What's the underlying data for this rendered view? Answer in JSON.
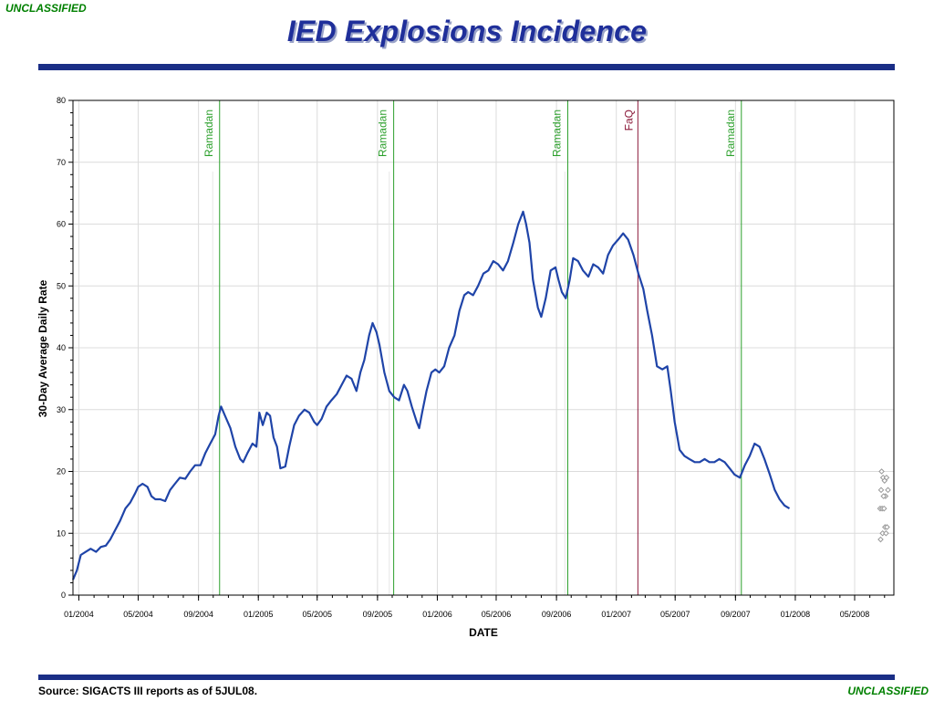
{
  "header": {
    "classification_top": "UNCLASSIFIED",
    "title": "IED Explosions Incidence"
  },
  "footer": {
    "source": "Source:  SIGACTS III reports as of 5JUL08.",
    "classification_bottom": "UNCLASSIFIED"
  },
  "colors": {
    "series": "#1f44a8",
    "ramadan": "#2ca02c",
    "faq": "#8b1a3a",
    "rule": "#1a2e86",
    "classification": "#008000"
  },
  "chart_data": {
    "type": "line",
    "title": "IED Explosions Incidence",
    "xlabel": "DATE",
    "ylabel": "30-Day Average Daily Rate",
    "ylim": [
      0,
      80
    ],
    "xlim": [
      "2003-12-20",
      "2008-07-20"
    ],
    "grid": true,
    "y_ticks": [
      0,
      10,
      20,
      30,
      40,
      50,
      60,
      70,
      80
    ],
    "x_ticks": [
      {
        "date": "2004-01-01",
        "label": "01/2004"
      },
      {
        "date": "2004-05-01",
        "label": "05/2004"
      },
      {
        "date": "2004-09-01",
        "label": "09/2004"
      },
      {
        "date": "2005-01-01",
        "label": "01/2005"
      },
      {
        "date": "2005-05-01",
        "label": "05/2005"
      },
      {
        "date": "2005-09-01",
        "label": "09/2005"
      },
      {
        "date": "2006-01-01",
        "label": "01/2006"
      },
      {
        "date": "2006-05-01",
        "label": "05/2006"
      },
      {
        "date": "2006-09-01",
        "label": "09/2006"
      },
      {
        "date": "2007-01-01",
        "label": "01/2007"
      },
      {
        "date": "2007-05-01",
        "label": "05/2007"
      },
      {
        "date": "2007-09-01",
        "label": "09/2007"
      },
      {
        "date": "2008-01-01",
        "label": "01/2008"
      },
      {
        "date": "2008-05-01",
        "label": "05/2008"
      }
    ],
    "events": [
      {
        "label": "Ramadan",
        "start": "2004-09-30",
        "end": "2004-10-14",
        "kind": "ramadan"
      },
      {
        "label": "Ramadan",
        "start": "2005-09-25",
        "end": "2005-10-04",
        "kind": "ramadan"
      },
      {
        "label": "Ramadan",
        "start": "2006-09-18",
        "end": "2006-09-24",
        "kind": "ramadan"
      },
      {
        "label": "FaQ",
        "start": "2007-02-14",
        "end": "2007-02-14",
        "kind": "faq"
      },
      {
        "label": "Ramadan",
        "start": "2007-09-09",
        "end": "2007-09-13",
        "kind": "ramadan"
      }
    ],
    "series": [
      {
        "values": [
          [
            "2003-12-20",
            2.5
          ],
          [
            "2003-12-28",
            4
          ],
          [
            "2004-01-05",
            6.5
          ],
          [
            "2004-01-15",
            7
          ],
          [
            "2004-01-25",
            7.5
          ],
          [
            "2004-02-05",
            7
          ],
          [
            "2004-02-15",
            7.8
          ],
          [
            "2004-02-25",
            8
          ],
          [
            "2004-03-05",
            9
          ],
          [
            "2004-03-15",
            10.5
          ],
          [
            "2004-03-25",
            12
          ],
          [
            "2004-04-05",
            14
          ],
          [
            "2004-04-15",
            15
          ],
          [
            "2004-04-25",
            16.5
          ],
          [
            "2004-05-01",
            17.5
          ],
          [
            "2004-05-10",
            18
          ],
          [
            "2004-05-20",
            17.5
          ],
          [
            "2004-05-28",
            16
          ],
          [
            "2004-06-05",
            15.5
          ],
          [
            "2004-06-15",
            15.5
          ],
          [
            "2004-06-25",
            15.2
          ],
          [
            "2004-07-05",
            17
          ],
          [
            "2004-07-15",
            18
          ],
          [
            "2004-07-25",
            19
          ],
          [
            "2004-08-05",
            18.8
          ],
          [
            "2004-08-15",
            20
          ],
          [
            "2004-08-25",
            21
          ],
          [
            "2004-09-05",
            21
          ],
          [
            "2004-09-15",
            23
          ],
          [
            "2004-09-25",
            24.5
          ],
          [
            "2004-10-05",
            26
          ],
          [
            "2004-10-12",
            29
          ],
          [
            "2004-10-17",
            30.5
          ],
          [
            "2004-10-25",
            29
          ],
          [
            "2004-11-05",
            27
          ],
          [
            "2004-11-15",
            24
          ],
          [
            "2004-11-25",
            22
          ],
          [
            "2004-12-01",
            21.5
          ],
          [
            "2004-12-10",
            23
          ],
          [
            "2004-12-20",
            24.5
          ],
          [
            "2004-12-28",
            24
          ],
          [
            "2005-01-03",
            29.5
          ],
          [
            "2005-01-10",
            27.5
          ],
          [
            "2005-01-18",
            29.5
          ],
          [
            "2005-01-25",
            29
          ],
          [
            "2005-02-01",
            25.5
          ],
          [
            "2005-02-08",
            24
          ],
          [
            "2005-02-15",
            20.5
          ],
          [
            "2005-02-25",
            20.8
          ],
          [
            "2005-03-05",
            24
          ],
          [
            "2005-03-15",
            27.5
          ],
          [
            "2005-03-25",
            29
          ],
          [
            "2005-04-05",
            30
          ],
          [
            "2005-04-15",
            29.5
          ],
          [
            "2005-04-25",
            28
          ],
          [
            "2005-05-01",
            27.5
          ],
          [
            "2005-05-10",
            28.5
          ],
          [
            "2005-05-20",
            30.5
          ],
          [
            "2005-05-30",
            31.5
          ],
          [
            "2005-06-10",
            32.5
          ],
          [
            "2005-06-20",
            34
          ],
          [
            "2005-06-30",
            35.5
          ],
          [
            "2005-07-10",
            35
          ],
          [
            "2005-07-20",
            33
          ],
          [
            "2005-07-28",
            36
          ],
          [
            "2005-08-05",
            38
          ],
          [
            "2005-08-15",
            42
          ],
          [
            "2005-08-22",
            44
          ],
          [
            "2005-08-30",
            42.5
          ],
          [
            "2005-09-05",
            40.5
          ],
          [
            "2005-09-15",
            36
          ],
          [
            "2005-09-25",
            33
          ],
          [
            "2005-10-05",
            32
          ],
          [
            "2005-10-15",
            31.5
          ],
          [
            "2005-10-25",
            34
          ],
          [
            "2005-11-01",
            33
          ],
          [
            "2005-11-10",
            30.5
          ],
          [
            "2005-11-20",
            28
          ],
          [
            "2005-11-25",
            27
          ],
          [
            "2005-12-01",
            29.5
          ],
          [
            "2005-12-10",
            33
          ],
          [
            "2005-12-20",
            36
          ],
          [
            "2005-12-28",
            36.5
          ],
          [
            "2006-01-05",
            36
          ],
          [
            "2006-01-15",
            37
          ],
          [
            "2006-01-25",
            40
          ],
          [
            "2006-02-05",
            42
          ],
          [
            "2006-02-15",
            46
          ],
          [
            "2006-02-25",
            48.5
          ],
          [
            "2006-03-05",
            49
          ],
          [
            "2006-03-15",
            48.5
          ],
          [
            "2006-03-25",
            50
          ],
          [
            "2006-04-05",
            52
          ],
          [
            "2006-04-15",
            52.5
          ],
          [
            "2006-04-25",
            54
          ],
          [
            "2006-05-05",
            53.5
          ],
          [
            "2006-05-15",
            52.5
          ],
          [
            "2006-05-25",
            54
          ],
          [
            "2006-06-05",
            57
          ],
          [
            "2006-06-15",
            60
          ],
          [
            "2006-06-25",
            62
          ],
          [
            "2006-07-01",
            60
          ],
          [
            "2006-07-08",
            57
          ],
          [
            "2006-07-15",
            51
          ],
          [
            "2006-07-25",
            46.5
          ],
          [
            "2006-08-01",
            45
          ],
          [
            "2006-08-10",
            48
          ],
          [
            "2006-08-20",
            52.5
          ],
          [
            "2006-08-30",
            53
          ],
          [
            "2006-09-05",
            51
          ],
          [
            "2006-09-12",
            49
          ],
          [
            "2006-09-20",
            48
          ],
          [
            "2006-09-28",
            51
          ],
          [
            "2006-10-05",
            54.5
          ],
          [
            "2006-10-15",
            54
          ],
          [
            "2006-10-25",
            52.5
          ],
          [
            "2006-11-05",
            51.5
          ],
          [
            "2006-11-15",
            53.5
          ],
          [
            "2006-11-25",
            53
          ],
          [
            "2006-12-05",
            52
          ],
          [
            "2006-12-15",
            55
          ],
          [
            "2006-12-25",
            56.5
          ],
          [
            "2007-01-05",
            57.5
          ],
          [
            "2007-01-15",
            58.5
          ],
          [
            "2007-01-25",
            57.5
          ],
          [
            "2007-02-05",
            55
          ],
          [
            "2007-02-15",
            52
          ],
          [
            "2007-02-25",
            49.5
          ],
          [
            "2007-03-05",
            46
          ],
          [
            "2007-03-15",
            42
          ],
          [
            "2007-03-25",
            37
          ],
          [
            "2007-04-05",
            36.5
          ],
          [
            "2007-04-15",
            37
          ],
          [
            "2007-04-22",
            33
          ],
          [
            "2007-04-30",
            28
          ],
          [
            "2007-05-10",
            23.5
          ],
          [
            "2007-05-20",
            22.5
          ],
          [
            "2007-05-30",
            22
          ],
          [
            "2007-06-10",
            21.5
          ],
          [
            "2007-06-20",
            21.5
          ],
          [
            "2007-06-30",
            22
          ],
          [
            "2007-07-10",
            21.5
          ],
          [
            "2007-07-20",
            21.5
          ],
          [
            "2007-07-30",
            22
          ],
          [
            "2007-08-10",
            21.5
          ],
          [
            "2007-08-20",
            20.5
          ],
          [
            "2007-08-30",
            19.5
          ],
          [
            "2007-09-10",
            19
          ],
          [
            "2007-09-20",
            21
          ],
          [
            "2007-09-30",
            22.5
          ],
          [
            "2007-10-10",
            24.5
          ],
          [
            "2007-10-20",
            24
          ],
          [
            "2007-10-30",
            22
          ],
          [
            "2007-11-10",
            19.5
          ],
          [
            "2007-11-20",
            17
          ],
          [
            "2007-11-30",
            15.5
          ],
          [
            "2007-12-10",
            14.5
          ],
          [
            "2007-12-20",
            14
          ]
        ]
      }
    ],
    "scatter_points": [
      [
        "2008-06-25",
        20
      ],
      [
        "2008-06-28",
        19
      ],
      [
        "2008-07-01",
        18.5
      ],
      [
        "2008-07-05",
        19
      ],
      [
        "2008-06-24",
        17
      ],
      [
        "2008-07-03",
        16
      ],
      [
        "2008-06-29",
        16
      ],
      [
        "2008-07-08",
        17
      ],
      [
        "2008-06-22",
        14
      ],
      [
        "2008-06-26",
        14
      ],
      [
        "2008-06-30",
        14
      ],
      [
        "2008-07-02",
        11
      ],
      [
        "2008-07-06",
        11
      ],
      [
        "2008-06-27",
        10
      ],
      [
        "2008-07-04",
        10
      ],
      [
        "2008-06-23",
        9
      ]
    ],
    "point_color": "#999999"
  }
}
